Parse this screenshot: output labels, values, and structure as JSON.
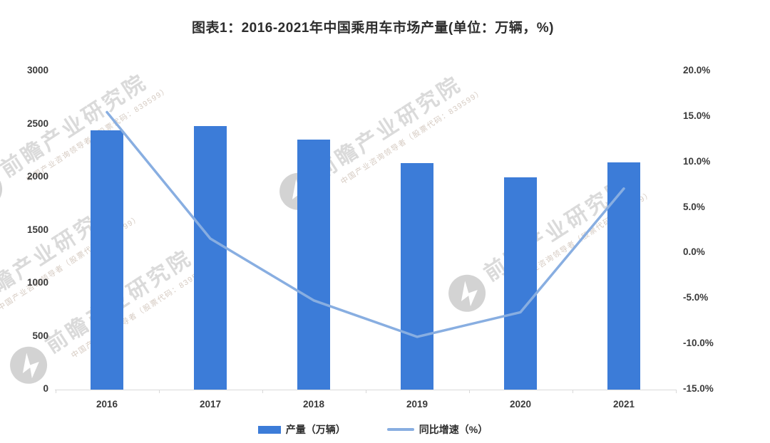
{
  "title": "图表1：2016-2021年中国乘用车市场产量(单位：万辆，%)",
  "chart_data": {
    "type": "bar+line combo",
    "categories": [
      "2016",
      "2017",
      "2018",
      "2019",
      "2020",
      "2021"
    ],
    "series": [
      {
        "name": "产量（万辆）",
        "type": "bar",
        "axis": "left",
        "values": [
          2442,
          2481,
          2353,
          2136,
          1999,
          2141
        ],
        "color": "#3c7cd8"
      },
      {
        "name": "同比增速（%）",
        "type": "line",
        "axis": "right",
        "values": [
          15.5,
          1.6,
          -5.2,
          -9.2,
          -6.5,
          7.1
        ],
        "color": "#88aee1"
      }
    ],
    "left_axis": {
      "min": 0,
      "max": 3000,
      "step": 500,
      "ticks": [
        "3000",
        "2500",
        "2000",
        "1500",
        "1000",
        "500",
        "0"
      ]
    },
    "right_axis": {
      "min": -15,
      "max": 20,
      "step": 5,
      "ticks": [
        "20.0%",
        "15.0%",
        "10.0%",
        "5.0%",
        "0.0%",
        "-5.0%",
        "-10.0%",
        "-15.0%"
      ]
    },
    "grid": false,
    "legend_position": "bottom"
  },
  "watermark": {
    "text": "前瞻产业研究院",
    "subtext": "中国产业咨询领导者（股票代码：839599）",
    "logo": "qianzhan-globe-icon"
  },
  "colors": {
    "bar": "#3c7cd8",
    "line": "#88aee1",
    "axis_text": "#3a3a3a",
    "title_text": "#2d2d2d",
    "axis_line": "#d9d9d9"
  }
}
